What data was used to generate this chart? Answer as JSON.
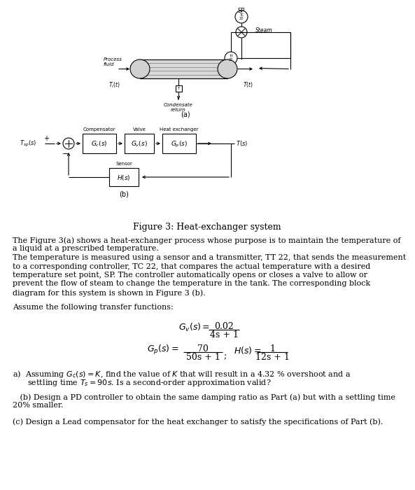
{
  "title": "Figure 3: Heat-exchanger system",
  "fig_width": 5.93,
  "fig_height": 7.0,
  "background": "#ffffff",
  "paragraph1_lines": [
    "The Figure 3(a) shows a heat-exchanger process whose purpose is to maintain the temperature of",
    "a liquid at a prescribed temperature.",
    "The temperature is measured using a sensor and a transmitter, TT 22, that sends the measurement",
    "to a corresponding controller, TC 22, that compares the actual temperature with a desired",
    "temperature set point, SP. The controller automatically opens or closes a valve to allow or",
    "prevent the flow of steam to change the temperature in the tank. The corresponding block",
    "diagram for this system is shown in Figure 3 (b)."
  ],
  "assume_text": "Assume the following transfer functions:",
  "tf_gv_num": "0.02",
  "tf_gv_den": "4s + 1",
  "tf_gp_num": "70",
  "tf_gp_den": "50s + 1",
  "tf_H_num": "1",
  "tf_H_den": "12s + 1",
  "part_a_line1": "a)  Assuming $G_c(s) = K$, find the value of $K$ that will result in a 4.32 % overshoot and a",
  "part_a_line2": "      settling time $T_s = 90s$. Is a second-order approximation valid?",
  "part_b_line1": "   (b) Design a PD controller to obtain the same damping ratio as Part (a) but with a settling time",
  "part_b_line2": "20% smaller.",
  "part_c": "(c) Design a Lead compensator for the heat exchanger to satisfy the specifications of Part (b)."
}
